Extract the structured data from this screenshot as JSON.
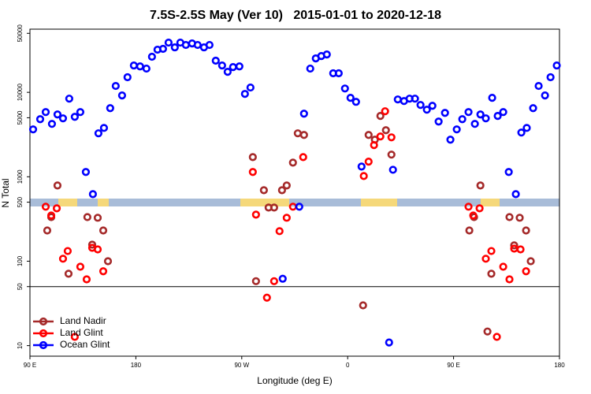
{
  "chart_data": {
    "type": "scatter",
    "title": "7.5S-2.5S May (Ver 10)   2015-01-01 to 2020-12-18",
    "x_label": "Longitude (deg E)",
    "y_label": "N Total",
    "xlim": [
      90,
      540
    ],
    "xticks": [
      {
        "value": 90,
        "label": "90 E"
      },
      180,
      {
        "value": 270,
        "label": "90 W"
      },
      {
        "value": 360,
        "label": "0"
      },
      {
        "value": 450,
        "label": "90 E"
      },
      {
        "value": 540,
        "label": "180"
      }
    ],
    "ylim": [
      7.5,
      56000
    ],
    "ylog": true,
    "yticks": [
      10,
      50,
      100,
      500,
      1000,
      5000,
      10000,
      50000
    ],
    "hline": 50,
    "legend": "lower left",
    "series": [
      {
        "name": "Land Nadir",
        "color": "#a52a2a",
        "x": [
          104.7,
          108.1,
          113.4,
          122.8,
          138.8,
          142.9,
          147.6,
          152.3,
          156.3,
          279.4,
          282.1,
          288.8,
          292.8,
          297.5,
          304.2,
          308.2,
          313.5,
          317.6,
          322.9,
          373.1,
          377.8,
          383.1,
          387.8,
          392.5,
          397.2,
          463.4,
          467.4,
          472.8,
          478.8,
          482.1,
          497.5,
          501.5,
          506.2,
          511.6,
          515.6
        ],
        "values": [
          231,
          333,
          789,
          71,
          333,
          157,
          327,
          231,
          100,
          1710,
          58,
          693,
          432,
          432,
          693,
          789,
          1470,
          3270,
          3130,
          30,
          3130,
          2750,
          5250,
          3560,
          1830,
          231,
          333,
          789,
          14.7,
          71,
          333,
          154,
          327,
          231,
          100
        ]
      },
      {
        "name": "Land Glint",
        "color": "#ff0000",
        "x": [
          103.4,
          108.1,
          112.8,
          118.1,
          122.1,
          128.1,
          132.8,
          138.2,
          142.9,
          147.6,
          152.3,
          279.4,
          282.1,
          291.4,
          297.5,
          302.1,
          308.2,
          313.5,
          322.2,
          373.7,
          377.8,
          382.4,
          387.8,
          391.8,
          397.2,
          462.7,
          466.7,
          472.1,
          477.4,
          482.1,
          486.8,
          492.2,
          497.5,
          501.5,
          506.9,
          511.6
        ],
        "values": [
          442,
          348,
          423,
          107,
          132,
          12.7,
          86,
          61,
          144,
          138,
          76,
          1140,
          356,
          37,
          58,
          227,
          327,
          442,
          1710,
          1020,
          1510,
          2370,
          3000,
          5970,
          2930,
          442,
          348,
          423,
          107,
          132,
          12.7,
          86,
          61,
          141,
          138,
          76
        ]
      },
      {
        "name": "Ocean Glint",
        "color": "#0000ff",
        "x": [
          92.7,
          98.7,
          103.4,
          108.7,
          113.4,
          118.1,
          123.4,
          128.1,
          132.8,
          137.5,
          143.5,
          148.2,
          152.9,
          158.2,
          162.9,
          168.3,
          172.9,
          178.3,
          183.6,
          189,
          193.7,
          198.4,
          203.1,
          207.8,
          213.1,
          217.8,
          222.5,
          227.8,
          232.5,
          237.9,
          242.6,
          247.9,
          253.3,
          258,
          262.6,
          268,
          272.7,
          277.4,
          304.8,
          318.9,
          322.9,
          328.2,
          332.9,
          337.6,
          342.3,
          347.7,
          352.4,
          357.7,
          362.4,
          367.1,
          371.8,
          395.2,
          398.5,
          402.6,
          407.9,
          412.6,
          417.2,
          421.9,
          427.3,
          432,
          437.3,
          442.7,
          447.3,
          452.7,
          457.4,
          462.7,
          468.1,
          472.8,
          477.4,
          482.8,
          487.5,
          492.2,
          496.9,
          502.9,
          507.6,
          512.2,
          517.6,
          522.3,
          527.7,
          532.4,
          537.7
        ],
        "values": [
          3640,
          4810,
          5840,
          4230,
          5470,
          4920,
          8420,
          5130,
          5840,
          1140,
          622,
          3270,
          3790,
          6500,
          11900,
          9180,
          15100,
          20800,
          20300,
          19100,
          26400,
          32000,
          32700,
          38800,
          34100,
          38800,
          36400,
          37950,
          36400,
          34100,
          36400,
          23700,
          20800,
          17500,
          19900,
          20300,
          9580,
          11400,
          62,
          442,
          5590,
          19100,
          25200,
          26900,
          28100,
          16800,
          16800,
          11100,
          8610,
          7720,
          1320,
          10.9,
          1210,
          8240,
          7890,
          8420,
          8420,
          7090,
          6230,
          6930,
          4510,
          5710,
          2750,
          3640,
          4810,
          5840,
          4230,
          5470,
          4920,
          8610,
          5250,
          5840,
          1140,
          622,
          3340,
          3790,
          6500,
          11900,
          9180,
          15100,
          20800
        ]
      }
    ]
  }
}
